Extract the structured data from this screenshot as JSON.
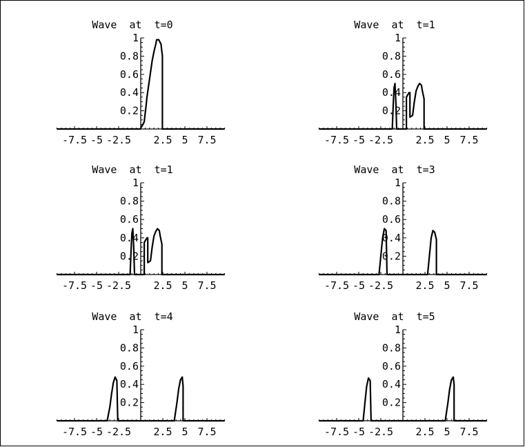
{
  "chart_data": [
    {
      "type": "line",
      "title": "Wave  at  t=0",
      "x_ticks": [
        "-7.5",
        "-5",
        "-2.5",
        "2.5",
        "5",
        "7.5"
      ],
      "y_ticks": [
        "0.2",
        "0.4",
        "0.6",
        "0.8",
        "1"
      ],
      "xlim": [
        -9.5,
        9.5
      ],
      "ylim": [
        0,
        1
      ],
      "series": [
        {
          "points": [
            [
              -9.5,
              0
            ],
            [
              -0.05,
              0
            ],
            [
              0,
              0.01
            ],
            [
              0.25,
              0.05
            ],
            [
              0.4,
              0.08
            ],
            [
              0.5,
              0.17
            ],
            [
              0.6,
              0.25
            ],
            [
              0.7,
              0.35
            ],
            [
              0.85,
              0.45
            ],
            [
              1.0,
              0.55
            ],
            [
              1.15,
              0.65
            ],
            [
              1.3,
              0.75
            ],
            [
              1.5,
              0.85
            ],
            [
              1.7,
              0.93
            ],
            [
              1.8,
              0.98
            ],
            [
              2.05,
              0.98
            ],
            [
              2.3,
              0.93
            ],
            [
              2.45,
              0.8
            ],
            [
              2.45,
              0
            ],
            [
              9.5,
              0
            ]
          ]
        }
      ]
    },
    {
      "type": "line",
      "title": "Wave  at  t=1",
      "x_ticks": [
        "-7.5",
        "-5",
        "-2.5",
        "2.5",
        "5",
        "7.5"
      ],
      "y_ticks": [
        "0.2",
        "0.4",
        "0.6",
        "0.8",
        "1"
      ],
      "xlim": [
        -9.5,
        9.5
      ],
      "ylim": [
        0,
        1
      ],
      "series": [
        {
          "points": [
            [
              -9.5,
              0
            ],
            [
              -1.2,
              0
            ],
            [
              -1.1,
              0.25
            ],
            [
              -1.0,
              0.45
            ],
            [
              -0.9,
              0.5
            ],
            [
              -0.8,
              0.3
            ],
            [
              -0.7,
              0
            ],
            [
              0.4,
              0
            ],
            [
              0.4,
              0.35
            ],
            [
              0.7,
              0.4
            ],
            [
              0.8,
              0.4
            ],
            [
              0.8,
              0.13
            ],
            [
              1.1,
              0.15
            ],
            [
              1.3,
              0.3
            ],
            [
              1.5,
              0.42
            ],
            [
              1.7,
              0.47
            ],
            [
              1.9,
              0.5
            ],
            [
              2.1,
              0.48
            ],
            [
              2.2,
              0.42
            ],
            [
              2.4,
              0.33
            ],
            [
              2.4,
              0
            ],
            [
              9.5,
              0
            ]
          ]
        }
      ]
    },
    {
      "type": "line",
      "title": "Wave  at  t=1",
      "x_ticks": [
        "-7.5",
        "-5",
        "-2.5",
        "2.5",
        "5",
        "7.5"
      ],
      "y_ticks": [
        "0.2",
        "0.4",
        "0.6",
        "0.8",
        "1"
      ],
      "xlim": [
        -9.5,
        9.5
      ],
      "ylim": [
        0,
        1
      ],
      "series": [
        {
          "points": [
            [
              -9.5,
              0
            ],
            [
              -1.2,
              0
            ],
            [
              -1.1,
              0.25
            ],
            [
              -1.0,
              0.45
            ],
            [
              -0.9,
              0.5
            ],
            [
              -0.8,
              0.3
            ],
            [
              -0.7,
              0
            ],
            [
              0.4,
              0
            ],
            [
              0.4,
              0.35
            ],
            [
              0.7,
              0.4
            ],
            [
              0.8,
              0.4
            ],
            [
              0.8,
              0.13
            ],
            [
              1.1,
              0.15
            ],
            [
              1.3,
              0.3
            ],
            [
              1.5,
              0.42
            ],
            [
              1.7,
              0.47
            ],
            [
              1.9,
              0.5
            ],
            [
              2.1,
              0.48
            ],
            [
              2.2,
              0.42
            ],
            [
              2.4,
              0.33
            ],
            [
              2.4,
              0
            ],
            [
              9.5,
              0
            ]
          ]
        }
      ]
    },
    {
      "type": "line",
      "title": "Wave  at  t=3",
      "x_ticks": [
        "-7.5",
        "-5",
        "-2.5",
        "2.5",
        "5",
        "7.5"
      ],
      "y_ticks": [
        "0.2",
        "0.4",
        "0.6",
        "0.8",
        "1"
      ],
      "xlim": [
        -9.5,
        9.5
      ],
      "ylim": [
        0,
        1
      ],
      "series": [
        {
          "points": [
            [
              -9.5,
              0
            ],
            [
              -2.7,
              0
            ],
            [
              -2.5,
              0.2
            ],
            [
              -2.3,
              0.4
            ],
            [
              -2.1,
              0.5
            ],
            [
              -1.9,
              0.48
            ],
            [
              -1.8,
              0
            ],
            [
              2.8,
              0
            ],
            [
              3.0,
              0.2
            ],
            [
              3.2,
              0.4
            ],
            [
              3.4,
              0.48
            ],
            [
              3.6,
              0.46
            ],
            [
              3.8,
              0.38
            ],
            [
              3.8,
              0
            ],
            [
              9.5,
              0
            ]
          ]
        }
      ]
    },
    {
      "type": "line",
      "title": "Wave  at  t=4",
      "x_ticks": [
        "-7.5",
        "-5",
        "-2.5",
        "2.5",
        "5",
        "7.5"
      ],
      "y_ticks": [
        "0.2",
        "0.4",
        "0.6",
        "0.8",
        "1"
      ],
      "xlim": [
        -9.5,
        9.5
      ],
      "ylim": [
        0,
        1
      ],
      "series": [
        {
          "points": [
            [
              -9.5,
              0
            ],
            [
              -3.8,
              0
            ],
            [
              -3.5,
              0.15
            ],
            [
              -3.3,
              0.3
            ],
            [
              -3.1,
              0.42
            ],
            [
              -2.9,
              0.48
            ],
            [
              -2.7,
              0.44
            ],
            [
              -2.6,
              0
            ],
            [
              3.8,
              0
            ],
            [
              4.1,
              0.2
            ],
            [
              4.3,
              0.35
            ],
            [
              4.5,
              0.45
            ],
            [
              4.7,
              0.48
            ],
            [
              4.8,
              0.38
            ],
            [
              4.8,
              0
            ],
            [
              9.5,
              0
            ]
          ]
        }
      ]
    },
    {
      "type": "line",
      "title": "Wave  at  t=5",
      "x_ticks": [
        "-7.5",
        "-5",
        "-2.5",
        "2.5",
        "5",
        "7.5"
      ],
      "y_ticks": [
        "0.2",
        "0.4",
        "0.6",
        "0.8",
        "1"
      ],
      "xlim": [
        -9.5,
        9.5
      ],
      "ylim": [
        0,
        1
      ],
      "series": [
        {
          "points": [
            [
              -9.5,
              0
            ],
            [
              -4.5,
              0
            ],
            [
              -4.3,
              0.2
            ],
            [
              -4.1,
              0.38
            ],
            [
              -3.9,
              0.47
            ],
            [
              -3.7,
              0.44
            ],
            [
              -3.6,
              0
            ],
            [
              4.8,
              0
            ],
            [
              5.1,
              0.2
            ],
            [
              5.3,
              0.35
            ],
            [
              5.5,
              0.45
            ],
            [
              5.7,
              0.48
            ],
            [
              5.8,
              0.4
            ],
            [
              5.8,
              0
            ],
            [
              9.5,
              0
            ]
          ]
        }
      ]
    }
  ]
}
